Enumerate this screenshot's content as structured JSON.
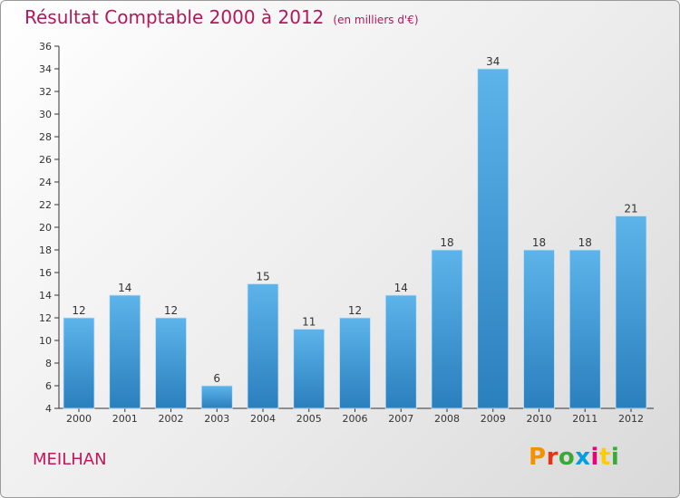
{
  "title": "Résultat Comptable 2000 à 2012",
  "subtitle": "(en milliers d'€)",
  "place_name": "MEILHAN",
  "logo": {
    "text": "Proxiti",
    "letter_colors": [
      "#f39200",
      "#e63312",
      "#3aaa35",
      "#009fe3",
      "#e6007e",
      "#ffcc00",
      "#3aaa35"
    ]
  },
  "colors": {
    "title": "#b0195a",
    "bar_top": "#5db4ea",
    "bar_bottom": "#2a7fbd"
  },
  "chart_data": {
    "type": "bar",
    "categories": [
      "2000",
      "2001",
      "2002",
      "2003",
      "2004",
      "2005",
      "2006",
      "2007",
      "2008",
      "2009",
      "2010",
      "2011",
      "2012"
    ],
    "values": [
      12,
      14,
      12,
      6,
      15,
      11,
      12,
      14,
      18,
      34,
      18,
      18,
      21
    ],
    "ylim": [
      4,
      36
    ],
    "yticks": [
      4,
      6,
      8,
      10,
      12,
      14,
      16,
      18,
      20,
      22,
      24,
      26,
      28,
      30,
      32,
      34,
      36
    ],
    "grid": false,
    "legend": "none"
  }
}
